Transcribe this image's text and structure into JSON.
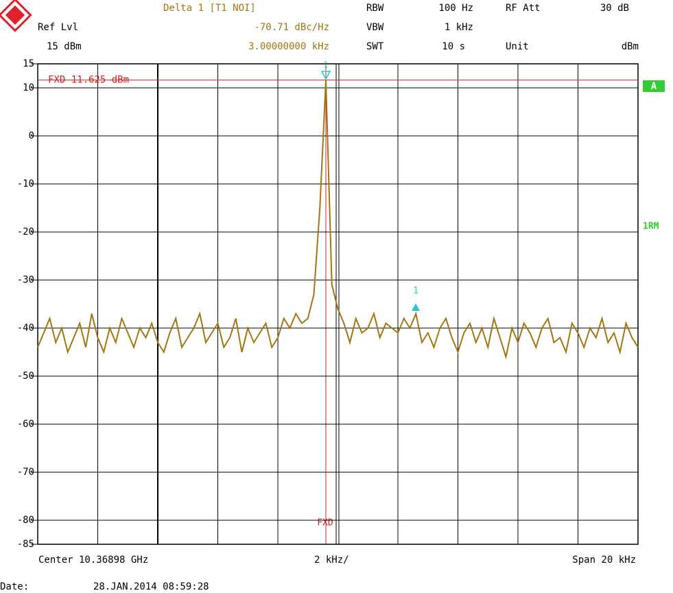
{
  "header": {
    "marker_title": "Delta 1 [T1 NOI]",
    "marker_level": "-70.71 dBc/Hz",
    "marker_freq": "3.00000000 kHz",
    "ref_lvl_label": "Ref Lvl",
    "ref_lvl_value": "15 dBm",
    "rbw_label": "RBW",
    "rbw_value": "100 Hz",
    "vbw_label": "VBW",
    "vbw_value": "1 kHz",
    "swt_label": "SWT",
    "swt_value": "10 s",
    "rfatt_label": "RF Att",
    "rfatt_value": "30 dB",
    "unit_label": "Unit",
    "unit_value": "dBm"
  },
  "side": {
    "trace_tag": "A",
    "detector_tag": "1RM"
  },
  "markers": {
    "peak": "1",
    "delta": "1",
    "fxd_bottom": "FXD"
  },
  "footer": {
    "center": "Center 10.36898 GHz",
    "per_div": "2 kHz/",
    "span": "Span 20 kHz",
    "date_label": "Date:",
    "date_value": "28.JAN.2014  08:59:28"
  },
  "chart_data": {
    "type": "line",
    "color": "#a3750f",
    "ylim": [
      -85,
      15
    ],
    "yticks": [
      15,
      10,
      0,
      -10,
      -20,
      -30,
      -40,
      -50,
      -60,
      -70,
      -80,
      -85
    ],
    "grid": true,
    "fxd_line": {
      "value": 11.625,
      "label": "FXD 11.625 dBm"
    },
    "values": [
      -44,
      -41,
      -38,
      -43,
      -40,
      -45,
      -42,
      -39,
      -44,
      -37,
      -42,
      -45,
      -40,
      -43,
      -38,
      -41,
      -44,
      -40,
      -42,
      -39,
      -43,
      -45,
      -41,
      -38,
      -44,
      -42,
      -40,
      -37,
      -43,
      -41,
      -39,
      -44,
      -42,
      -38,
      -45,
      -40,
      -43,
      -41,
      -39,
      -44,
      -42,
      -38,
      -40,
      -37,
      -39,
      -38,
      -33,
      -15,
      11.6,
      -31,
      -36,
      -39,
      -43,
      -38,
      -41,
      -40,
      -37,
      -42,
      -39,
      -40,
      -41,
      -38,
      -40,
      -37,
      -43,
      -41,
      -44,
      -40,
      -38,
      -42,
      -45,
      -41,
      -39,
      -43,
      -40,
      -44,
      -38,
      -42,
      -46,
      -40,
      -43,
      -39,
      -41,
      -44,
      -40,
      -38,
      -43,
      -42,
      -45,
      -39,
      -41,
      -44,
      -40,
      -42,
      -38,
      -43,
      -41,
      -45,
      -39,
      -42,
      -44
    ]
  }
}
